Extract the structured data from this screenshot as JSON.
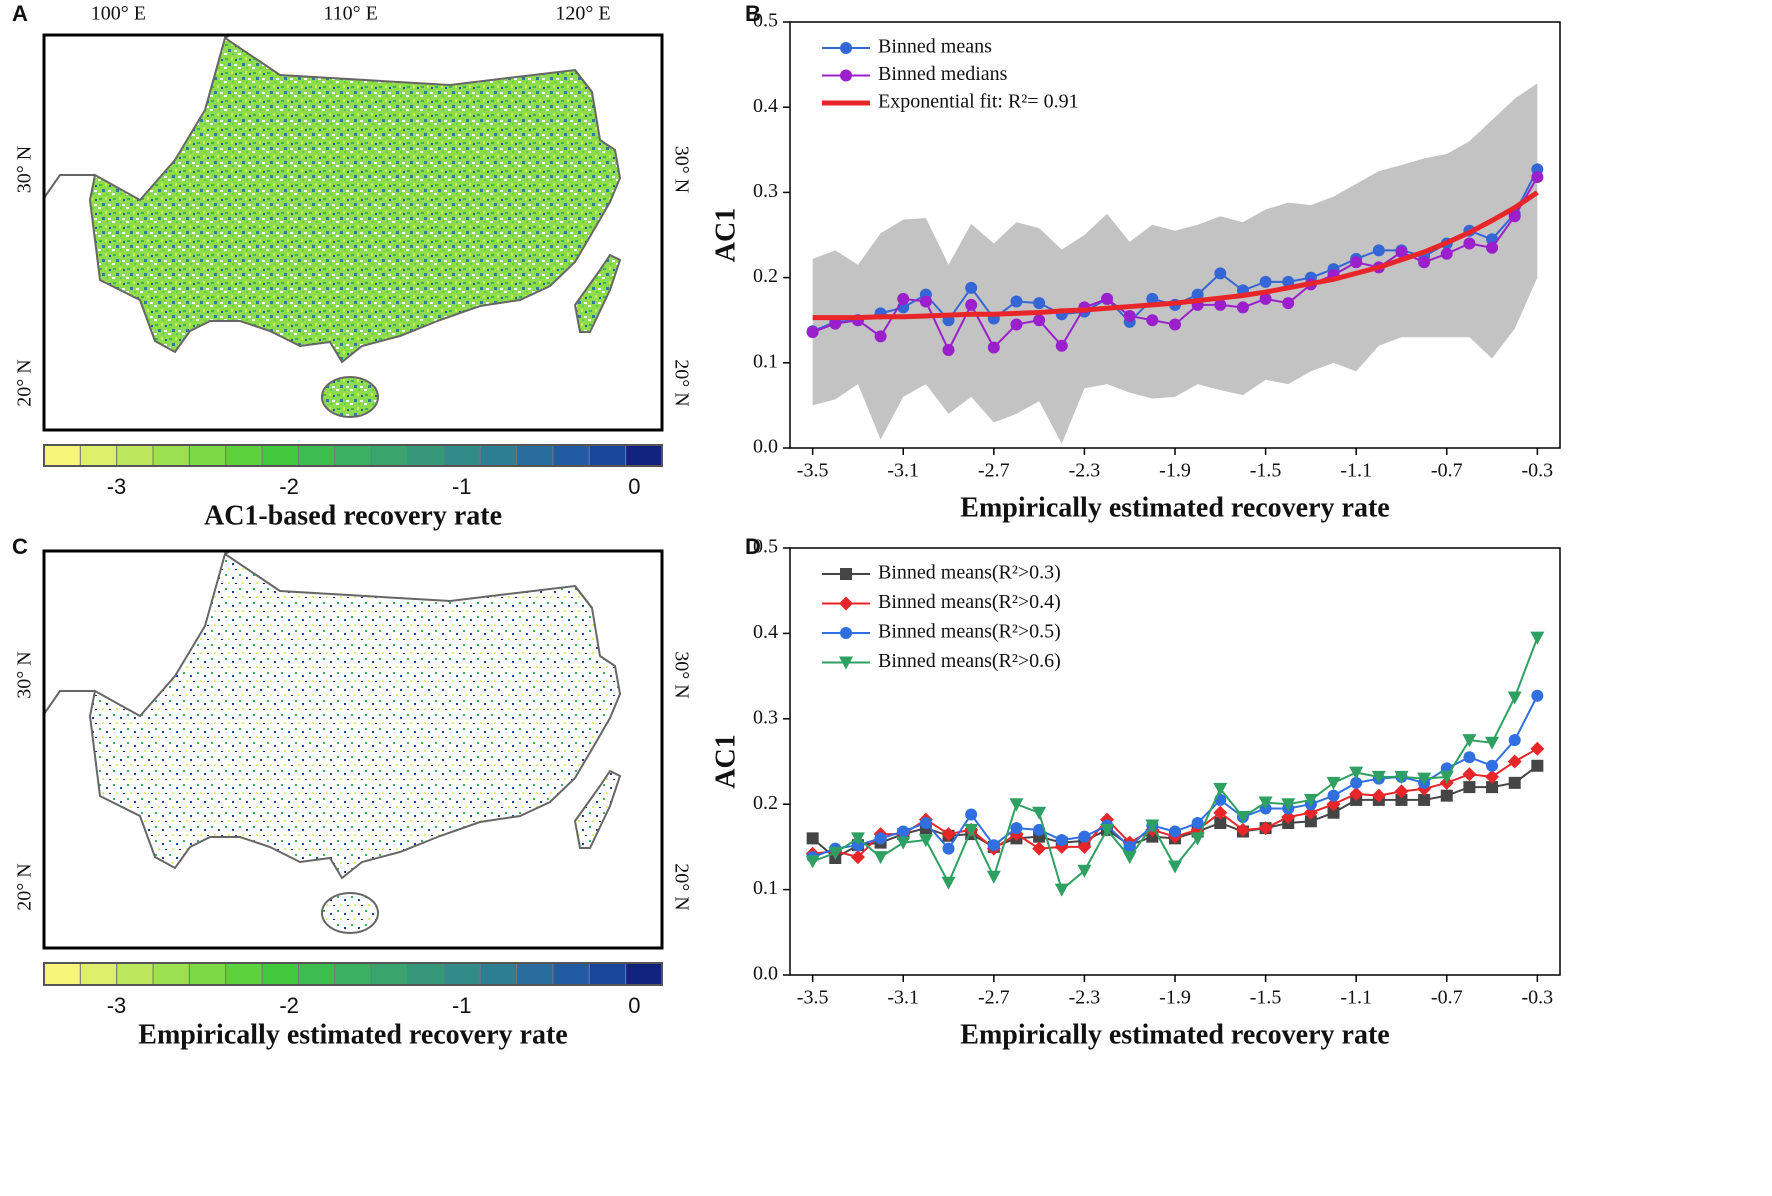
{
  "chart_data": [
    {
      "type": "map",
      "panel": "A",
      "xlim": [
        96.8,
        123.4
      ],
      "xticks": [
        {
          "value": 100,
          "label": "100° E"
        },
        {
          "value": 110,
          "label": "110° E"
        },
        {
          "value": 120,
          "label": "120° E"
        }
      ],
      "ylim": [
        17.8,
        36.3
      ],
      "yticks": [
        {
          "value": 20,
          "label": "20° N"
        },
        {
          "value": 30,
          "label": "30° N"
        }
      ],
      "colorbar": {
        "label": "AC1-based recovery rate",
        "clim": [
          -3.42,
          0.16
        ],
        "ticks": [
          -3,
          -2,
          -1,
          0
        ],
        "colors": [
          "#f6f57a",
          "#dcf06c",
          "#bde85e",
          "#9de152",
          "#7dd946",
          "#5cd23c",
          "#42c93d",
          "#3dbc50",
          "#3bb061",
          "#39a46e",
          "#369879",
          "#328b87",
          "#2d7d93",
          "#286d9d",
          "#225ba1",
          "#1a469a",
          "#0f237c"
        ]
      }
    },
    {
      "type": "line",
      "panel": "B",
      "xlabel": "Empirically estimated recovery rate",
      "ylabel": "AC1",
      "legend": "upper left",
      "x": [
        -3.5,
        -3.4,
        -3.3,
        -3.2,
        -3.1,
        -3.0,
        -2.9,
        -2.8,
        -2.7,
        -2.6,
        -2.5,
        -2.4,
        -2.3,
        -2.2,
        -2.1,
        -2.0,
        -1.9,
        -1.8,
        -1.7,
        -1.6,
        -1.5,
        -1.4,
        -1.3,
        -1.2,
        -1.1,
        -1.0,
        -0.9,
        -0.8,
        -0.7,
        -0.6,
        -0.5,
        -0.4,
        -0.3
      ],
      "xlim": [
        -3.6,
        -0.2
      ],
      "xticks": [
        -3.5,
        -3.1,
        -2.7,
        -2.3,
        -1.9,
        -1.5,
        -1.1,
        -0.7,
        -0.3
      ],
      "ylim": [
        0,
        0.5
      ],
      "yticks": [
        {
          "value": 0,
          "label": "0.0"
        },
        0.1,
        0.2,
        0.3,
        0.4,
        0.5
      ],
      "band": {
        "color": "#c3c3c3",
        "upper": [
          0.222,
          0.232,
          0.215,
          0.252,
          0.268,
          0.27,
          0.215,
          0.263,
          0.24,
          0.265,
          0.258,
          0.233,
          0.25,
          0.275,
          0.242,
          0.262,
          0.255,
          0.262,
          0.272,
          0.265,
          0.28,
          0.288,
          0.285,
          0.295,
          0.31,
          0.325,
          0.332,
          0.34,
          0.345,
          0.36,
          0.385,
          0.41,
          0.428
        ],
        "lower": [
          0.05,
          0.057,
          0.075,
          0.01,
          0.06,
          0.075,
          0.04,
          0.06,
          0.03,
          0.04,
          0.055,
          0.005,
          0.07,
          0.075,
          0.065,
          0.058,
          0.06,
          0.075,
          0.068,
          0.062,
          0.08,
          0.075,
          0.09,
          0.1,
          0.09,
          0.12,
          0.13,
          0.13,
          0.13,
          0.13,
          0.105,
          0.14,
          0.2
        ]
      },
      "series": [
        {
          "name": "Binned means",
          "color": "#3566d6",
          "marker": "circle",
          "values": [
            0.137,
            0.148,
            0.15,
            0.158,
            0.165,
            0.18,
            0.15,
            0.188,
            0.152,
            0.172,
            0.17,
            0.157,
            0.16,
            0.175,
            0.148,
            0.175,
            0.168,
            0.18,
            0.205,
            0.185,
            0.195,
            0.195,
            0.2,
            0.21,
            0.222,
            0.232,
            0.232,
            0.225,
            0.24,
            0.255,
            0.245,
            0.275,
            0.327
          ]
        },
        {
          "name": "Binned medians",
          "color": "#9b1fcc",
          "marker": "circle",
          "values": [
            0.136,
            0.146,
            0.15,
            0.131,
            0.175,
            0.172,
            0.115,
            0.168,
            0.118,
            0.145,
            0.15,
            0.12,
            0.165,
            0.175,
            0.155,
            0.15,
            0.145,
            0.168,
            0.168,
            0.165,
            0.175,
            0.17,
            0.192,
            0.203,
            0.218,
            0.212,
            0.23,
            0.218,
            0.228,
            0.24,
            0.235,
            0.272,
            0.318
          ]
        },
        {
          "name": "Exponential fit: R²= 0.91",
          "color": "#e8262a",
          "marker": "none",
          "values": [
            0.153,
            0.153,
            0.153,
            0.154,
            0.154,
            0.155,
            0.156,
            0.157,
            0.157,
            0.158,
            0.159,
            0.161,
            0.162,
            0.164,
            0.166,
            0.168,
            0.17,
            0.173,
            0.176,
            0.179,
            0.183,
            0.188,
            0.193,
            0.198,
            0.205,
            0.212,
            0.221,
            0.23,
            0.241,
            0.253,
            0.267,
            0.282,
            0.3
          ]
        }
      ]
    },
    {
      "type": "map",
      "panel": "C",
      "ylim": [
        17.12,
        35.85
      ],
      "yticks": [
        {
          "value": 20,
          "label": "20° N"
        },
        {
          "value": 30,
          "label": "30° N"
        }
      ],
      "colorbar": {
        "label": "Empirically estimated recovery rate",
        "clim": [
          -3.42,
          0.16
        ],
        "ticks": [
          -3,
          -2,
          -1,
          0
        ],
        "colors": [
          "#f6f57a",
          "#dcf06c",
          "#bde85e",
          "#9de152",
          "#7dd946",
          "#5cd23c",
          "#42c93d",
          "#3dbc50",
          "#3bb061",
          "#39a46e",
          "#369879",
          "#328b87",
          "#2d7d93",
          "#286d9d",
          "#225ba1",
          "#1a469a",
          "#0f237c"
        ]
      }
    },
    {
      "type": "line",
      "panel": "D",
      "xlabel": "Empirically estimated recovery rate",
      "ylabel": "AC1",
      "legend": "upper left",
      "x": [
        -3.5,
        -3.4,
        -3.3,
        -3.2,
        -3.1,
        -3.0,
        -2.9,
        -2.8,
        -2.7,
        -2.6,
        -2.5,
        -2.4,
        -2.3,
        -2.2,
        -2.1,
        -2.0,
        -1.9,
        -1.8,
        -1.7,
        -1.6,
        -1.5,
        -1.4,
        -1.3,
        -1.2,
        -1.1,
        -1.0,
        -0.9,
        -0.8,
        -0.7,
        -0.6,
        -0.5,
        -0.4,
        -0.3
      ],
      "xlim": [
        -3.6,
        -0.2
      ],
      "xticks": [
        -3.5,
        -3.1,
        -2.7,
        -2.3,
        -1.9,
        -1.5,
        -1.1,
        -0.7,
        -0.3
      ],
      "ylim": [
        0,
        0.5
      ],
      "yticks": [
        {
          "value": 0,
          "label": "0.0"
        },
        0.1,
        0.2,
        0.3,
        0.4,
        0.5
      ],
      "series": [
        {
          "name": "Binned means(R²>0.3)",
          "color": "#454545",
          "marker": "square",
          "values": [
            0.16,
            0.137,
            0.152,
            0.155,
            0.165,
            0.172,
            0.163,
            0.165,
            0.15,
            0.16,
            0.162,
            0.155,
            0.157,
            0.17,
            0.152,
            0.162,
            0.16,
            0.168,
            0.178,
            0.168,
            0.172,
            0.178,
            0.18,
            0.19,
            0.205,
            0.205,
            0.205,
            0.205,
            0.21,
            0.22,
            0.22,
            0.225,
            0.245
          ]
        },
        {
          "name": "Binned means(R²>0.4)",
          "color": "#e8262a",
          "marker": "diamond",
          "values": [
            0.142,
            0.145,
            0.138,
            0.165,
            0.165,
            0.182,
            0.165,
            0.17,
            0.148,
            0.165,
            0.148,
            0.15,
            0.15,
            0.182,
            0.155,
            0.17,
            0.162,
            0.17,
            0.19,
            0.17,
            0.172,
            0.185,
            0.19,
            0.2,
            0.212,
            0.21,
            0.215,
            0.218,
            0.225,
            0.235,
            0.232,
            0.25,
            0.265
          ]
        },
        {
          "name": "Binned means(R²>0.5)",
          "color": "#2f6fe0",
          "marker": "circle",
          "values": [
            0.138,
            0.148,
            0.152,
            0.16,
            0.168,
            0.178,
            0.148,
            0.188,
            0.152,
            0.172,
            0.17,
            0.158,
            0.162,
            0.175,
            0.15,
            0.175,
            0.168,
            0.178,
            0.205,
            0.185,
            0.195,
            0.195,
            0.2,
            0.21,
            0.225,
            0.23,
            0.232,
            0.225,
            0.242,
            0.255,
            0.245,
            0.275,
            0.327
          ]
        },
        {
          "name": "Binned means(R²>0.6)",
          "color": "#2ea162",
          "marker": "triangle-down",
          "values": [
            0.133,
            0.143,
            0.16,
            0.138,
            0.155,
            0.158,
            0.108,
            0.17,
            0.115,
            0.2,
            0.19,
            0.1,
            0.122,
            0.17,
            0.138,
            0.175,
            0.127,
            0.16,
            0.218,
            0.185,
            0.202,
            0.2,
            0.205,
            0.225,
            0.237,
            0.232,
            0.232,
            0.23,
            0.232,
            0.275,
            0.272,
            0.325,
            0.395
          ]
        }
      ]
    }
  ]
}
